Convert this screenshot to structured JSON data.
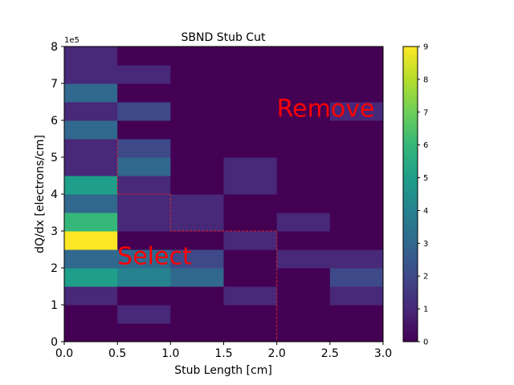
{
  "chart_data": {
    "type": "heatmap",
    "title": "SBND Stub Cut",
    "xlabel": "Stub Length [cm]",
    "ylabel": "dQ/dx [electrons/cm]",
    "y_offset_label": "1e5",
    "xlim": [
      0,
      3.0
    ],
    "ylim": [
      0,
      800000
    ],
    "x_bin_edges": [
      0,
      0.5,
      1.0,
      1.5,
      2.0,
      2.5,
      3.0
    ],
    "y_bin_edges": [
      0,
      50000,
      100000,
      150000,
      200000,
      250000,
      300000,
      350000,
      400000,
      450000,
      500000,
      550000,
      600000,
      650000,
      700000,
      750000,
      800000
    ],
    "x_ticks": [
      "0.0",
      "0.5",
      "1.0",
      "1.5",
      "2.0",
      "2.5",
      "3.0"
    ],
    "y_ticks": [
      "0",
      "1",
      "2",
      "3",
      "4",
      "5",
      "6",
      "7",
      "8"
    ],
    "colorbar": {
      "colormap": "viridis",
      "range": [
        0,
        9
      ],
      "ticks": [
        "0",
        "1",
        "2",
        "3",
        "4",
        "5",
        "6",
        "7",
        "8",
        "9"
      ]
    },
    "counts": [
      [
        0,
        0,
        0,
        0,
        0,
        0
      ],
      [
        0,
        1,
        0,
        0,
        0,
        0
      ],
      [
        1,
        0,
        0,
        1,
        0,
        1
      ],
      [
        5,
        4,
        3,
        0,
        0,
        2
      ],
      [
        3,
        3,
        2,
        0,
        1,
        1
      ],
      [
        9,
        0,
        0,
        1,
        0,
        0
      ],
      [
        6,
        1,
        1,
        0,
        1,
        0
      ],
      [
        3,
        1,
        1,
        0,
        0,
        0
      ],
      [
        5,
        1,
        0,
        1,
        0,
        0
      ],
      [
        1,
        3,
        0,
        1,
        0,
        0
      ],
      [
        1,
        2,
        0,
        0,
        0,
        0
      ],
      [
        3,
        0,
        0,
        0,
        0,
        0
      ],
      [
        1,
        2,
        0,
        0,
        0,
        1
      ],
      [
        3,
        0,
        0,
        0,
        0,
        0
      ],
      [
        1,
        1,
        0,
        0,
        0,
        0
      ],
      [
        1,
        0,
        0,
        0,
        0,
        0
      ]
    ],
    "cut_line": {
      "color": "#d62728",
      "style": "dashed",
      "points": [
        [
          0.5,
          550000
        ],
        [
          0.5,
          400000
        ],
        [
          1.0,
          400000
        ],
        [
          1.0,
          300000
        ],
        [
          2.0,
          300000
        ],
        [
          2.0,
          0
        ]
      ]
    },
    "annotations": [
      {
        "text": "Remove",
        "x": 2.0,
        "y": 610000,
        "color": "#ff0000"
      },
      {
        "text": "Select",
        "x": 0.5,
        "y": 210000,
        "color": "#ff0000"
      }
    ]
  }
}
